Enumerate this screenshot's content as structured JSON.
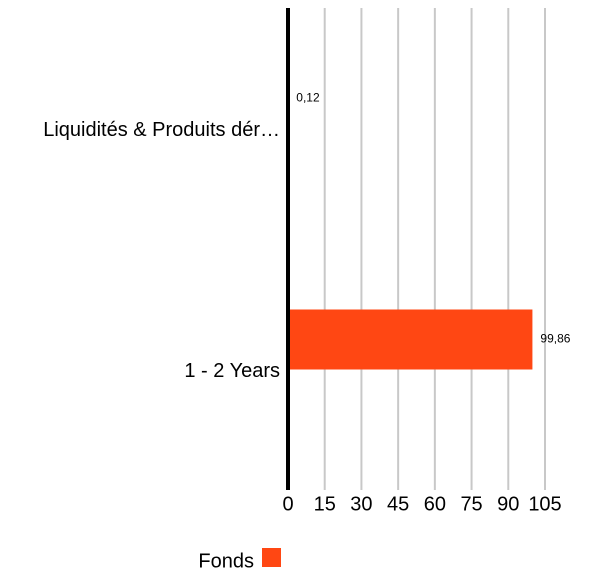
{
  "chart_data": {
    "type": "bar",
    "orientation": "horizontal",
    "categories": [
      "Liquidités & Produits dér…",
      "1 - 2 Years"
    ],
    "series": [
      {
        "name": "Fonds",
        "color": "#ff4713",
        "values": [
          0.12,
          99.86
        ],
        "value_labels": [
          "0,12",
          "99,86"
        ]
      }
    ],
    "xlim": [
      0,
      105
    ],
    "xticks": [
      0,
      15,
      30,
      45,
      60,
      75,
      90,
      105
    ],
    "grid": true,
    "legend": "bottom"
  }
}
